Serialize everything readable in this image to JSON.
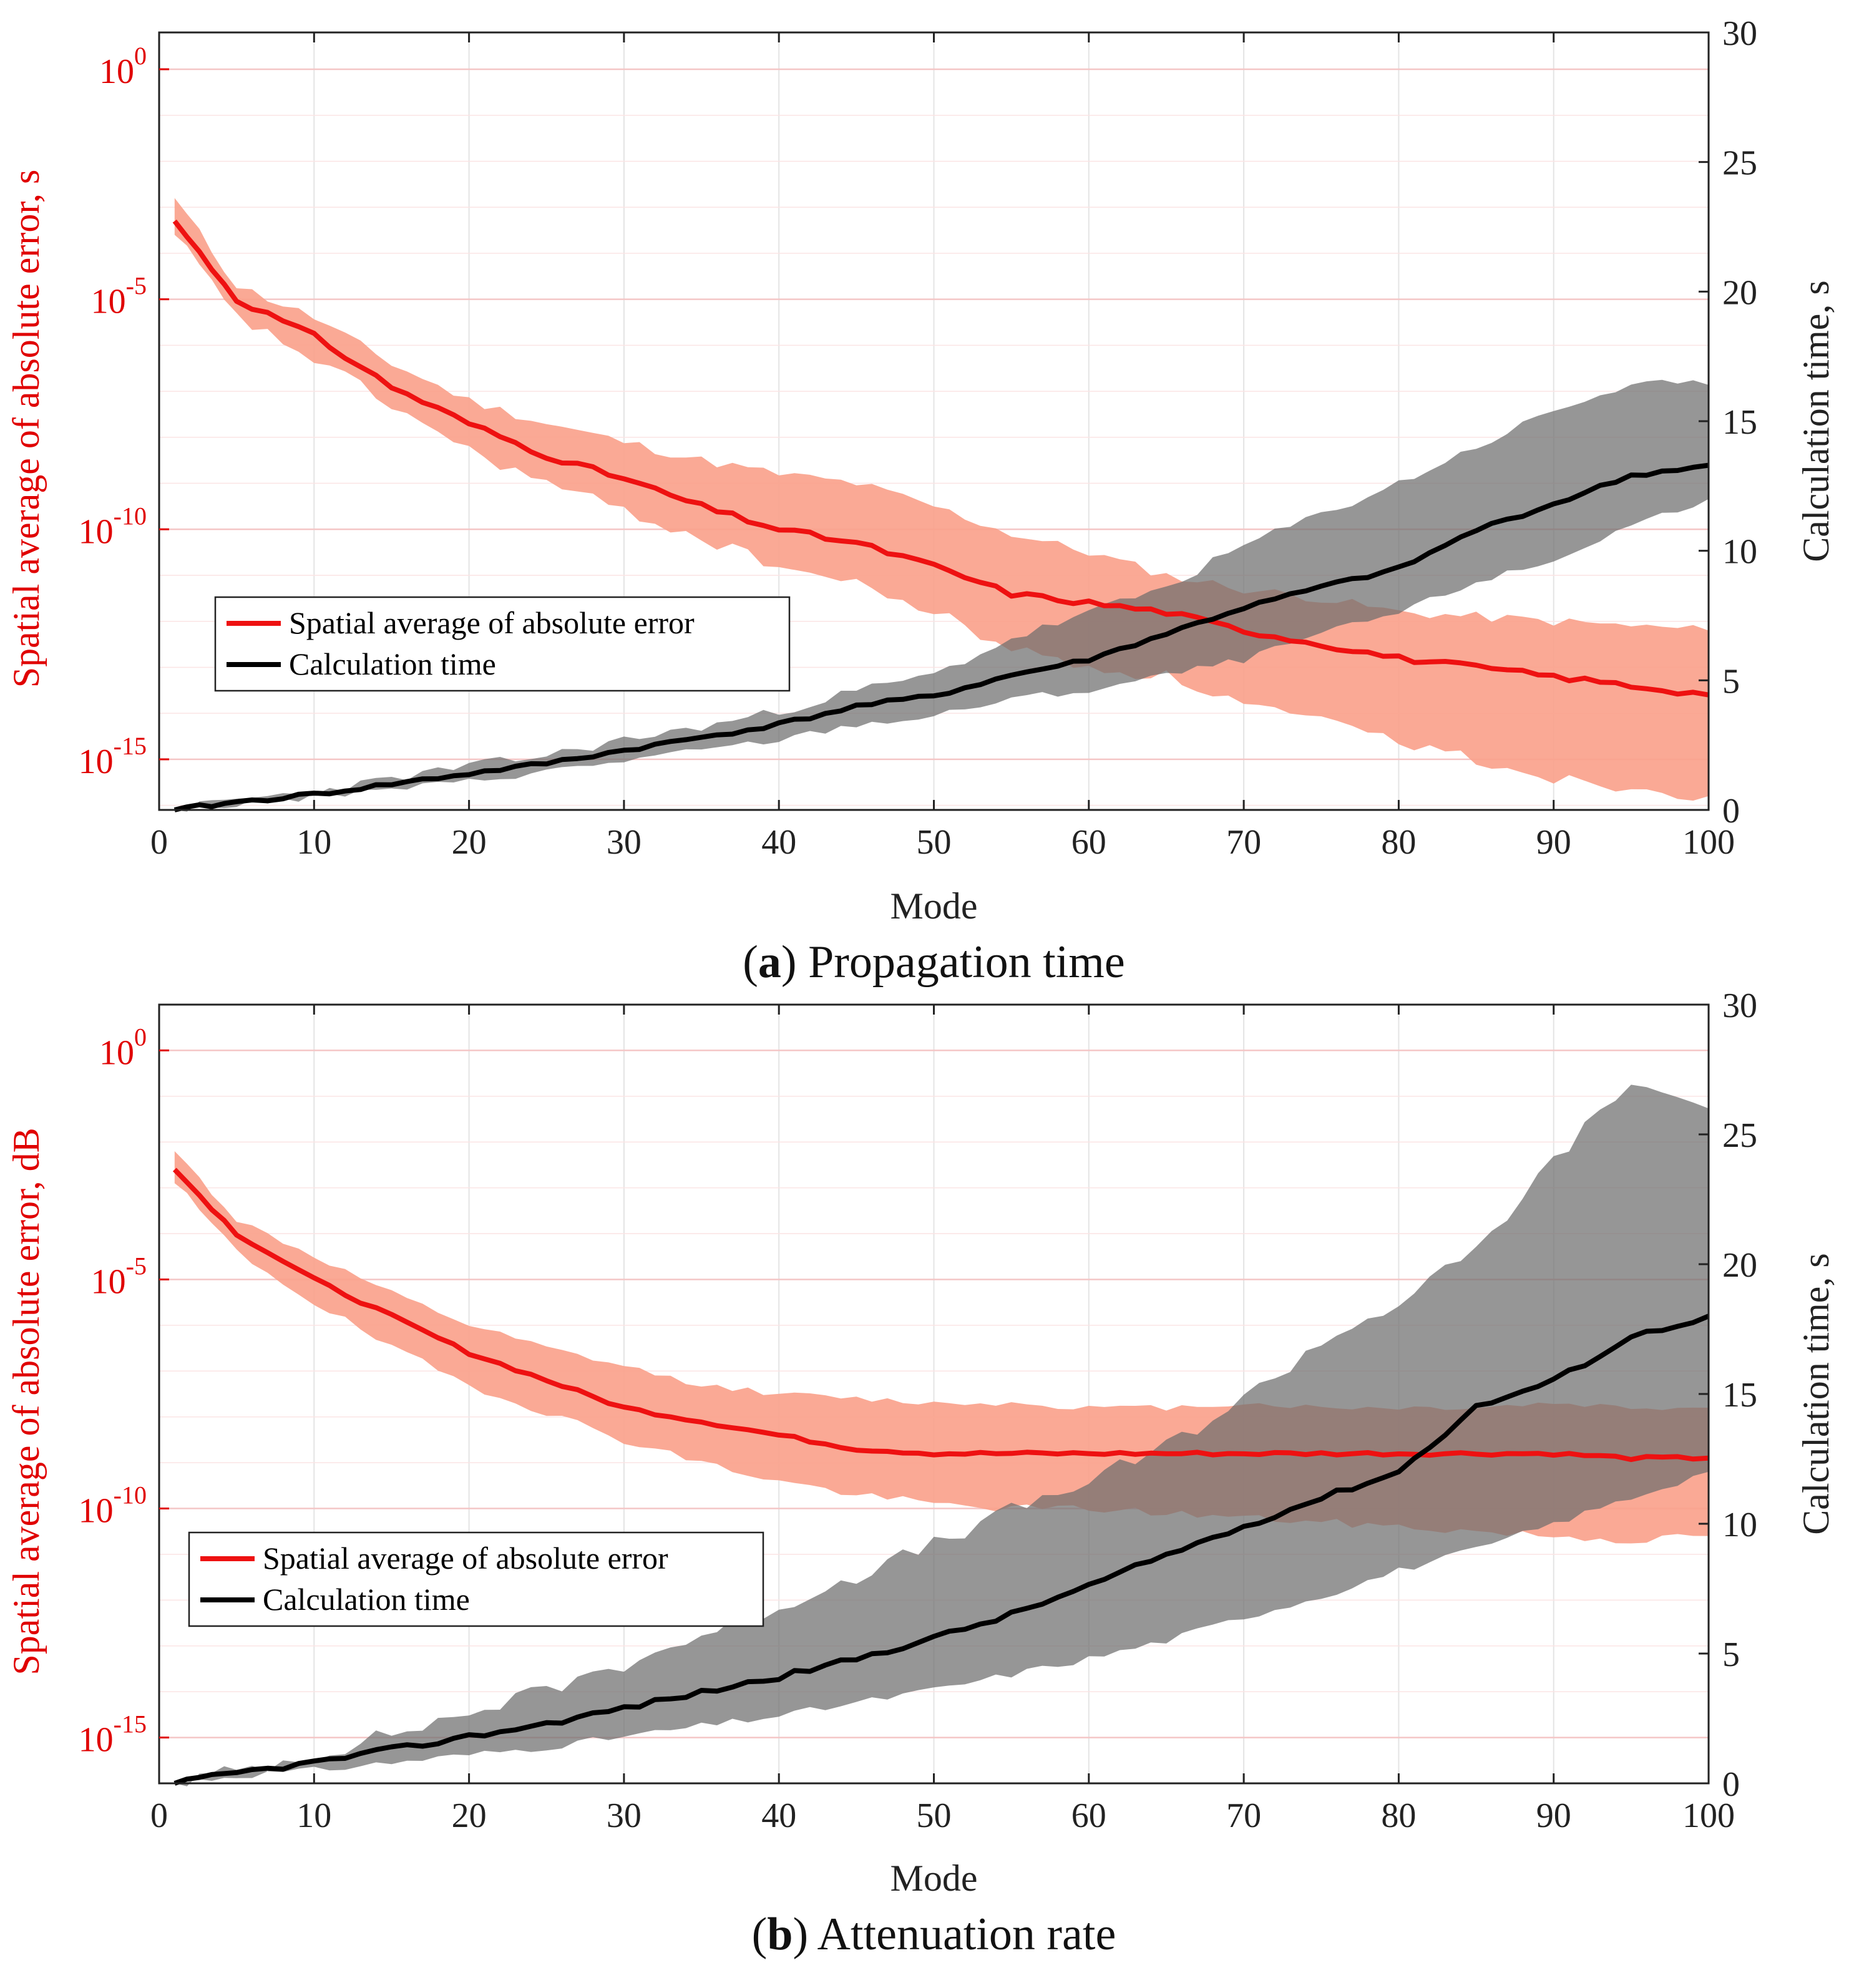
{
  "chart_data": [
    {
      "type": "line",
      "caption_letter": "a",
      "caption_text": "Propagation time",
      "xlabel": "Mode",
      "ylabel_left": "Spatial average of absolute error, s",
      "ylabel_right": "Calculation time, s",
      "xlim": [
        0,
        100
      ],
      "xticks": [
        0,
        10,
        20,
        30,
        40,
        50,
        60,
        70,
        80,
        90,
        100
      ],
      "ylim_left_log10": [
        -16.1,
        0.8
      ],
      "yticks_left_exp": [
        0,
        -5,
        -10,
        -15
      ],
      "ylim_right": [
        0,
        30
      ],
      "yticks_right": [
        0,
        5,
        10,
        15,
        20,
        25,
        30
      ],
      "grid": true,
      "legend_position": "left-middle",
      "colors": {
        "error": "#ee1111",
        "error_band": "#f9a08a",
        "time": "#000000",
        "time_band": "#6e6e6e"
      },
      "series": [
        {
          "name": "Spatial average of absolute error",
          "axis": "left",
          "scale": "log",
          "x": [
            1,
            5,
            10,
            15,
            20,
            25,
            30,
            35,
            40,
            45,
            50,
            55,
            60,
            65,
            70,
            75,
            80,
            85,
            90,
            95,
            100
          ],
          "log10_values": [
            -3.3,
            -5.0,
            -5.8,
            -6.9,
            -7.7,
            -8.4,
            -8.9,
            -9.5,
            -10.0,
            -10.3,
            -10.8,
            -11.4,
            -11.6,
            -11.8,
            -12.2,
            -12.5,
            -12.8,
            -13.0,
            -13.2,
            -13.4,
            -13.6
          ],
          "band_upper_log10": [
            -2.8,
            -4.7,
            -5.4,
            -6.4,
            -7.2,
            -7.7,
            -8.1,
            -8.5,
            -8.8,
            -9.0,
            -9.5,
            -10.1,
            -10.5,
            -11.0,
            -11.3,
            -11.5,
            -11.8,
            -11.9,
            -12.0,
            -12.1,
            -12.2
          ],
          "band_lower_log10": [
            -3.6,
            -5.4,
            -6.3,
            -7.3,
            -8.3,
            -9.0,
            -9.6,
            -10.2,
            -10.8,
            -11.2,
            -11.8,
            -12.6,
            -13.0,
            -13.2,
            -13.8,
            -14.2,
            -14.6,
            -15.0,
            -15.4,
            -15.6,
            -15.8
          ]
        },
        {
          "name": "Calculation time",
          "axis": "right",
          "scale": "linear",
          "x": [
            1,
            5,
            10,
            15,
            20,
            25,
            30,
            35,
            40,
            45,
            50,
            55,
            60,
            65,
            70,
            75,
            80,
            85,
            90,
            95,
            100
          ],
          "values": [
            0.0,
            0.3,
            0.6,
            1.0,
            1.4,
            1.8,
            2.3,
            2.8,
            3.3,
            4.0,
            4.4,
            5.2,
            5.8,
            6.8,
            7.8,
            8.6,
            9.3,
            10.8,
            11.8,
            12.9,
            13.3
          ],
          "band_upper": [
            0.0,
            0.4,
            0.7,
            1.2,
            1.7,
            2.1,
            2.7,
            3.2,
            3.8,
            4.6,
            5.2,
            6.6,
            7.6,
            8.6,
            10.2,
            11.4,
            12.6,
            14.0,
            15.4,
            16.4,
            16.4
          ],
          "band_lower": [
            0.0,
            0.2,
            0.5,
            0.8,
            1.1,
            1.5,
            1.9,
            2.3,
            2.7,
            3.3,
            3.6,
            4.3,
            4.6,
            5.2,
            5.8,
            6.8,
            7.6,
            8.8,
            9.6,
            11.0,
            12.0
          ]
        }
      ]
    },
    {
      "type": "line",
      "caption_letter": "b",
      "caption_text": "Attenuation rate",
      "xlabel": "Mode",
      "ylabel_left": "Spatial average of absolute error, dB",
      "ylabel_right": "Calculation time, s",
      "xlim": [
        0,
        100
      ],
      "xticks": [
        0,
        10,
        20,
        30,
        40,
        50,
        60,
        70,
        80,
        90,
        100
      ],
      "ylim_left_log10": [
        -16.0,
        1.0
      ],
      "yticks_left_exp": [
        0,
        -5,
        -10,
        -15
      ],
      "ylim_right": [
        0,
        30
      ],
      "yticks_right": [
        0,
        5,
        10,
        15,
        20,
        25,
        30
      ],
      "grid": true,
      "legend_position": "left-lower",
      "colors": {
        "error": "#ee1111",
        "error_band": "#f9a08a",
        "time": "#000000",
        "time_band": "#6e6e6e"
      },
      "series": [
        {
          "name": "Spatial average of absolute error",
          "axis": "left",
          "scale": "log",
          "x": [
            1,
            5,
            10,
            15,
            20,
            25,
            30,
            35,
            40,
            45,
            50,
            55,
            60,
            65,
            70,
            75,
            80,
            85,
            90,
            95,
            100
          ],
          "log10_values": [
            -2.6,
            -4.0,
            -5.0,
            -5.8,
            -6.6,
            -7.2,
            -7.8,
            -8.1,
            -8.4,
            -8.7,
            -8.8,
            -8.8,
            -8.8,
            -8.8,
            -8.8,
            -8.8,
            -8.8,
            -8.8,
            -8.8,
            -8.9,
            -8.9
          ],
          "band_upper_log10": [
            -2.2,
            -3.7,
            -4.5,
            -5.3,
            -6.0,
            -6.5,
            -6.9,
            -7.3,
            -7.5,
            -7.6,
            -7.7,
            -7.7,
            -7.8,
            -7.8,
            -7.7,
            -7.8,
            -7.8,
            -7.8,
            -7.7,
            -7.8,
            -7.8
          ],
          "band_lower_log10": [
            -2.9,
            -4.4,
            -5.5,
            -6.5,
            -7.3,
            -7.9,
            -8.5,
            -9.0,
            -9.4,
            -9.7,
            -9.9,
            -10.0,
            -10.0,
            -10.1,
            -10.2,
            -10.3,
            -10.4,
            -10.5,
            -10.6,
            -10.7,
            -10.6
          ]
        },
        {
          "name": "Calculation time",
          "axis": "right",
          "scale": "linear",
          "x": [
            1,
            5,
            10,
            15,
            20,
            25,
            30,
            35,
            40,
            45,
            50,
            55,
            60,
            65,
            70,
            75,
            80,
            85,
            90,
            95,
            100
          ],
          "values": [
            0.0,
            0.4,
            0.8,
            1.3,
            1.8,
            2.3,
            2.9,
            3.5,
            4.1,
            4.8,
            5.6,
            6.5,
            7.6,
            8.8,
            9.9,
            11.0,
            12.0,
            14.5,
            15.5,
            17.2,
            18.0
          ],
          "band_upper": [
            0.0,
            0.5,
            1.1,
            1.9,
            2.7,
            3.6,
            4.6,
            5.7,
            6.8,
            8.0,
            9.2,
            10.5,
            11.6,
            13.0,
            14.8,
            17.0,
            18.5,
            20.5,
            24.0,
            27.0,
            26.0
          ],
          "band_lower": [
            0.0,
            0.3,
            0.5,
            0.8,
            1.1,
            1.4,
            1.8,
            2.2,
            2.6,
            3.1,
            3.6,
            4.2,
            4.8,
            5.5,
            6.4,
            7.2,
            8.2,
            9.0,
            10.0,
            11.0,
            12.0
          ]
        }
      ]
    }
  ]
}
